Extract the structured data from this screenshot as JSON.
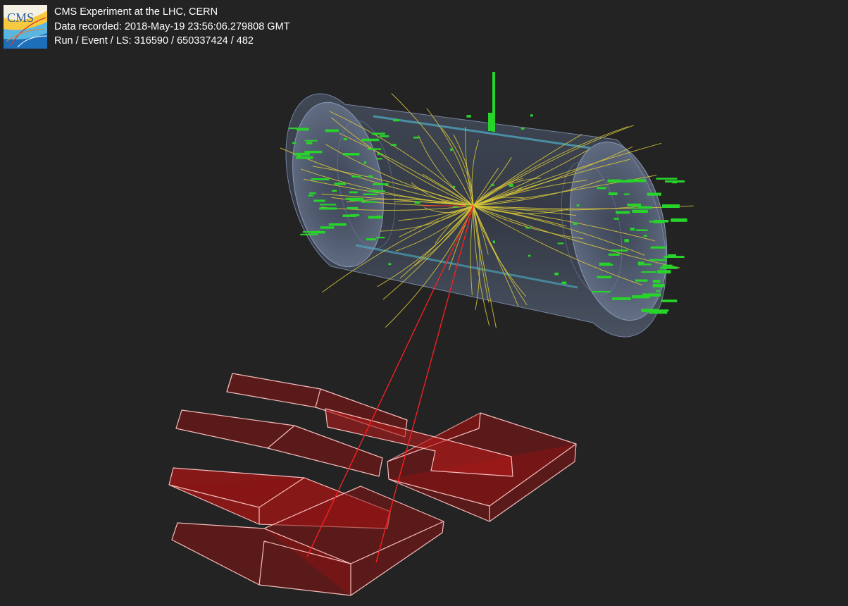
{
  "caption": {
    "line1": "CMS Experiment at the LHC, CERN",
    "line2": "Data recorded: 2018-May-19 23:56:06.279808 GMT",
    "line3": "Run / Event / LS: 316590 / 650337424 / 482"
  },
  "logo": {
    "text": "CMS",
    "icon": "cms-logo-icon"
  },
  "colors": {
    "background": "#232323",
    "tracks": "#d8c83a",
    "calo_hits": "#27d42a",
    "muons": "#ff1a1a",
    "muon_chambers_fill": "#8a1414",
    "muon_chambers_edge": "#f6bcbc",
    "tracker_barrel": "#6b7c98",
    "tracker_edge": "#4fb0c9"
  },
  "scene": {
    "description_icon": "event-display",
    "objects": [
      "tracker-barrel",
      "charged-tracks",
      "calorimeter-hits",
      "muon-tracks",
      "muon-chambers"
    ]
  }
}
